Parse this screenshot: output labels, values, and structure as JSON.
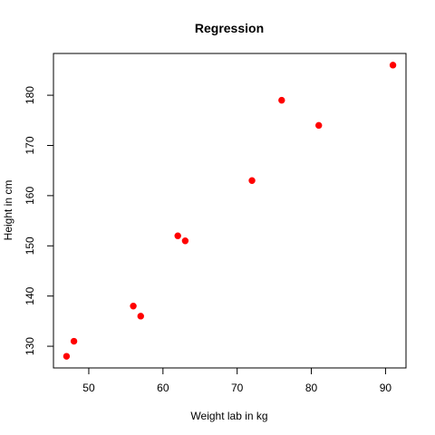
{
  "chart_data": {
    "type": "scatter",
    "title": "Regression",
    "xlabel": "Weight lab in kg",
    "ylabel": "Height in cm",
    "xlim": [
      45.24,
      92.76
    ],
    "ylim": [
      125.68,
      188.32
    ],
    "x_ticks": [
      50,
      60,
      70,
      80,
      90
    ],
    "y_ticks": [
      130,
      140,
      150,
      160,
      170,
      180
    ],
    "grid": false,
    "point_color": "#ff0000",
    "points": [
      {
        "x": 47,
        "y": 128
      },
      {
        "x": 48,
        "y": 131
      },
      {
        "x": 56,
        "y": 138
      },
      {
        "x": 57,
        "y": 136
      },
      {
        "x": 62,
        "y": 152
      },
      {
        "x": 63,
        "y": 151
      },
      {
        "x": 72,
        "y": 163
      },
      {
        "x": 76,
        "y": 179
      },
      {
        "x": 81,
        "y": 174
      },
      {
        "x": 91,
        "y": 186
      }
    ]
  }
}
